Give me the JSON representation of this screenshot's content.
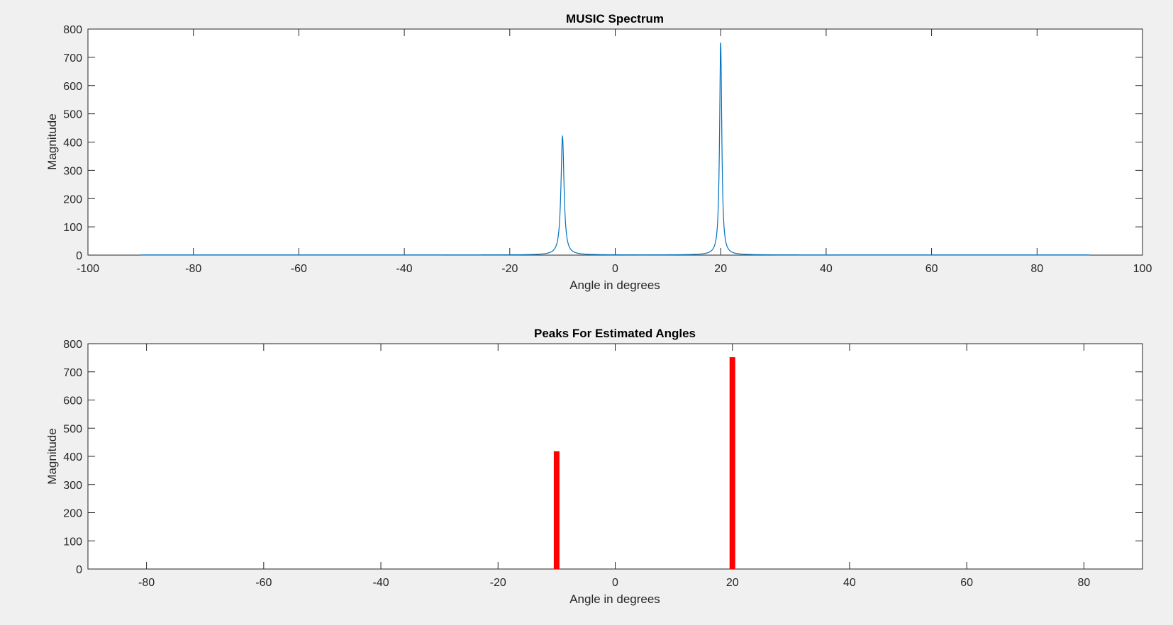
{
  "chart_data": [
    {
      "type": "line",
      "title": "MUSIC Spectrum",
      "xlabel": "Angle in degrees",
      "ylabel": "Magnitude",
      "xlim": [
        -100,
        100
      ],
      "ylim": [
        0,
        800
      ],
      "xticks": [
        "-100",
        "-80",
        "-60",
        "-40",
        "-20",
        "0",
        "20",
        "40",
        "60",
        "80",
        "100"
      ],
      "yticks": [
        "0",
        "100",
        "200",
        "300",
        "400",
        "500",
        "600",
        "700",
        "800"
      ],
      "grid": false,
      "line_color": "#0072bd",
      "x_range": [
        -90,
        90
      ],
      "peaks": [
        {
          "x": -10,
          "y": 420,
          "width": 0.35
        },
        {
          "x": 20,
          "y": 752,
          "width": 0.25
        }
      ]
    },
    {
      "type": "bar",
      "title": "Peaks For Estimated Angles",
      "xlabel": "Angle in degrees",
      "ylabel": "Magnitude",
      "xlim": [
        -90,
        90
      ],
      "ylim": [
        0,
        800
      ],
      "xticks": [
        "-80",
        "-60",
        "-40",
        "-20",
        "0",
        "20",
        "40",
        "60",
        "80"
      ],
      "yticks": [
        "0",
        "100",
        "200",
        "300",
        "400",
        "500",
        "600",
        "700",
        "800"
      ],
      "grid": false,
      "bar_color": "#ff0000",
      "bars": [
        {
          "x": -10,
          "y": 418
        },
        {
          "x": 20,
          "y": 752
        }
      ]
    }
  ]
}
